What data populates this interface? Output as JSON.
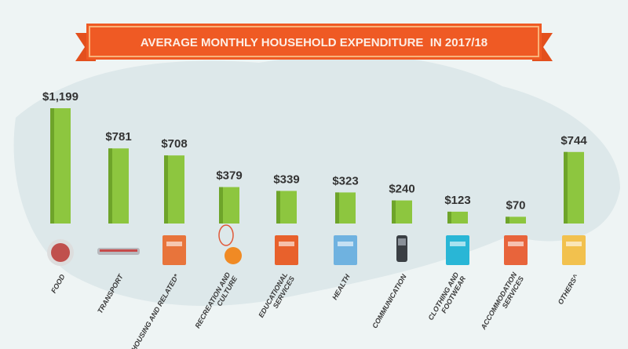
{
  "chart_data": {
    "type": "bar",
    "title": "AVERAGE MONTHLY HOUSEHOLD EXPENDITURE  IN 2017/18",
    "xlabel": "",
    "ylabel": "",
    "ylim": [
      0,
      1300
    ],
    "grid": false,
    "categories": [
      [
        "FOOD"
      ],
      [
        "TRANSPORT"
      ],
      [
        "HOUSING AND RELATED*"
      ],
      [
        "RECREATION AND",
        "CULTURE"
      ],
      [
        "EDUCATIONAL",
        "SERVICES"
      ],
      [
        "HEALTH"
      ],
      [
        "COMMUNICATION"
      ],
      [
        "CLOTHING AND",
        "FOOTWEAR"
      ],
      [
        "ACCOMMODATION",
        "SERVICES"
      ],
      [
        "OTHERS^"
      ]
    ],
    "values": [
      1199,
      781,
      708,
      379,
      339,
      323,
      240,
      123,
      70,
      744
    ],
    "value_labels": [
      "$1,199",
      "$781",
      "$708",
      "$379",
      "$339",
      "$323",
      "$240",
      "$123",
      "$70",
      "$744"
    ],
    "icons": [
      "food-plate-icon",
      "train-icon",
      "house-icon",
      "racket-ball-icon",
      "books-icon",
      "hospital-icon",
      "mobile-phone-icon",
      "shirt-shoe-icon",
      "hotel-icon",
      "shopping-cart-icon"
    ],
    "colors": {
      "bar": "#8dc63f",
      "bar_shade": "#6ea42a",
      "banner": "#ef5a24",
      "banner_border": "#f9b27a",
      "text": "#3a3a3a",
      "background": "#eef4f4",
      "map": "#dde8ea"
    }
  }
}
